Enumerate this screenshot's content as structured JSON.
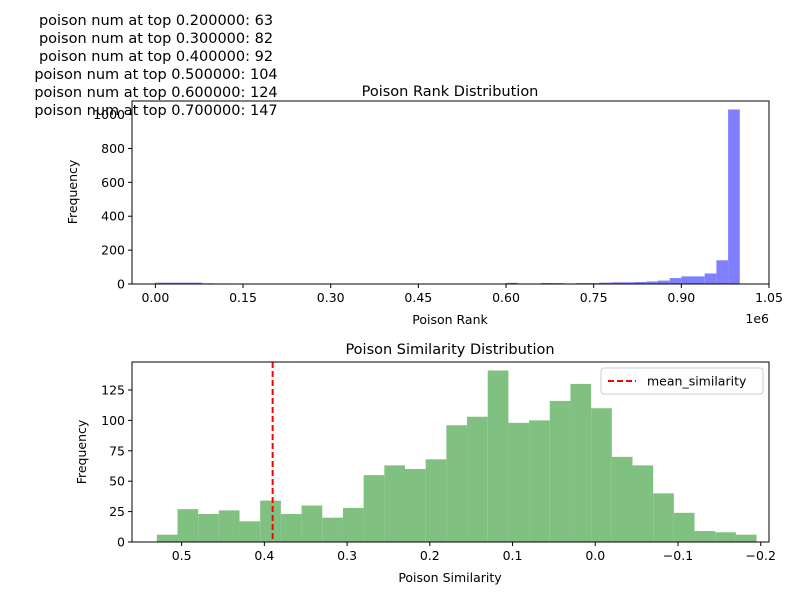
{
  "overlay_text": [
    "poison num at top 0.200000: 63",
    "poison num at top 0.300000: 82",
    "poison num at top 0.400000: 92",
    "poison num at top 0.500000: 104",
    "poison num at top 0.600000: 124",
    "poison num at top 0.700000: 147"
  ],
  "chart_data": [
    {
      "type": "bar",
      "title": "Poison Rank Distribution",
      "xlabel": "Poison Rank",
      "ylabel": "Frequency",
      "x_scale_label": "1e6",
      "color": "#8080ff",
      "xlim": [
        -0.04,
        1.05
      ],
      "ylim": [
        0,
        1080
      ],
      "x_ticks": [
        0.0,
        0.15,
        0.3,
        0.45,
        0.6,
        0.75,
        0.9,
        1.05
      ],
      "x_tick_labels": [
        "0.00",
        "0.15",
        "0.30",
        "0.45",
        "0.60",
        "0.75",
        "0.90",
        "1.05"
      ],
      "y_ticks": [
        0,
        200,
        400,
        600,
        800,
        1000
      ],
      "y_tick_labels": [
        "0",
        "200",
        "400",
        "600",
        "800",
        "1000"
      ],
      "bin_edges": [
        0.0,
        0.02,
        0.04,
        0.06,
        0.08,
        0.1,
        0.12,
        0.14,
        0.16,
        0.18,
        0.2,
        0.22,
        0.24,
        0.26,
        0.28,
        0.3,
        0.32,
        0.34,
        0.36,
        0.38,
        0.4,
        0.42,
        0.44,
        0.46,
        0.48,
        0.5,
        0.52,
        0.54,
        0.56,
        0.58,
        0.6,
        0.62,
        0.64,
        0.66,
        0.68,
        0.7,
        0.72,
        0.74,
        0.76,
        0.78,
        0.8,
        0.82,
        0.84,
        0.86,
        0.88,
        0.9,
        0.92,
        0.94,
        0.96,
        0.98,
        1.0
      ],
      "values": [
        8,
        8,
        8,
        8,
        4,
        3,
        3,
        2,
        2,
        2,
        2,
        2,
        2,
        2,
        2,
        2,
        2,
        2,
        2,
        2,
        2,
        2,
        2,
        2,
        2,
        2,
        2,
        2,
        2,
        2,
        7,
        3,
        3,
        6,
        5,
        3,
        5,
        5,
        8,
        10,
        10,
        12,
        15,
        20,
        35,
        45,
        45,
        62,
        140,
        1030
      ]
    },
    {
      "type": "bar",
      "title": "Poison Similarity Distribution",
      "xlabel": "Poison Similarity",
      "ylabel": "Frequency",
      "color": "#80c080",
      "xlim": [
        0.56,
        -0.21
      ],
      "ylim": [
        0,
        148
      ],
      "x_ticks": [
        0.5,
        0.4,
        0.3,
        0.2,
        0.1,
        0.0,
        -0.1,
        -0.2
      ],
      "x_tick_labels": [
        "0.5",
        "0.4",
        "0.3",
        "0.2",
        "0.1",
        "0.0",
        "−0.1",
        "−0.2"
      ],
      "y_ticks": [
        0,
        25,
        50,
        75,
        100,
        125
      ],
      "y_tick_labels": [
        "0",
        "25",
        "50",
        "75",
        "100",
        "125"
      ],
      "bin_edges": [
        0.53,
        0.505,
        0.48,
        0.455,
        0.43,
        0.405,
        0.38,
        0.355,
        0.33,
        0.305,
        0.28,
        0.255,
        0.23,
        0.205,
        0.18,
        0.155,
        0.13,
        0.105,
        0.08,
        0.055,
        0.03,
        0.005,
        -0.02,
        -0.045,
        -0.07,
        -0.095,
        -0.12,
        -0.145,
        -0.17,
        -0.195
      ],
      "values": [
        6,
        27,
        23,
        26,
        17,
        34,
        23,
        30,
        20,
        28,
        55,
        63,
        60,
        68,
        96,
        103,
        141,
        98,
        100,
        116,
        130,
        110,
        70,
        63,
        40,
        24,
        9,
        8,
        6,
        2
      ],
      "vline": {
        "x": 0.39,
        "color": "#ff0000",
        "label": "mean_similarity"
      },
      "legend_position": "top-right"
    }
  ]
}
